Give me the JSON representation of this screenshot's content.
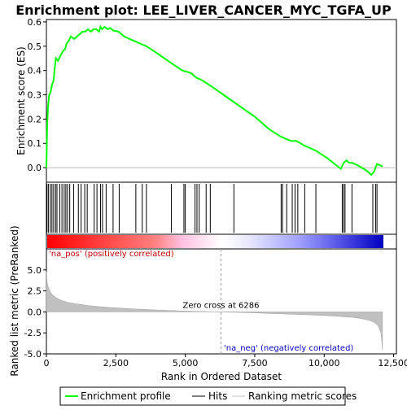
{
  "chart_data": {
    "type": "line",
    "title": "Enrichment plot: LEE_LIVER_CANCER_MYC_TGFA_UP",
    "top_panel": {
      "ylabel": "Enrichment score (ES)",
      "ylim": [
        -0.06,
        0.61
      ],
      "y_ticks": [
        0.0,
        0.1,
        0.2,
        0.3,
        0.4,
        0.5,
        0.6
      ],
      "y_tick_labels": [
        "0.0",
        "0.1",
        "0.2",
        "0.3",
        "0.4",
        "0.5",
        "0.6"
      ],
      "series": [
        {
          "name": "Enrichment profile",
          "color": "#00ff00",
          "x": [
            0,
            30,
            60,
            100,
            150,
            200,
            260,
            300,
            340,
            420,
            500,
            600,
            680,
            720,
            790,
            880,
            1000,
            1100,
            1200,
            1300,
            1400,
            1500,
            1600,
            1700,
            1800,
            1900,
            1950,
            2000,
            2100,
            2200,
            2300,
            2400,
            2600,
            2800,
            3000,
            3200,
            3400,
            3600,
            4000,
            4500,
            4900,
            5200,
            5400,
            5600,
            6000,
            6500,
            7000,
            7500,
            8000,
            8400,
            8600,
            8800,
            9000,
            9300,
            9700,
            10100,
            10600,
            10700,
            10800,
            10900,
            11000,
            11200,
            11500,
            11700,
            11800,
            11900,
            12000,
            12100
          ],
          "y": [
            0.0,
            0.18,
            0.25,
            0.3,
            0.31,
            0.34,
            0.36,
            0.41,
            0.45,
            0.44,
            0.46,
            0.48,
            0.49,
            0.51,
            0.52,
            0.54,
            0.53,
            0.54,
            0.55,
            0.56,
            0.56,
            0.57,
            0.56,
            0.57,
            0.57,
            0.56,
            0.58,
            0.57,
            0.58,
            0.57,
            0.575,
            0.565,
            0.56,
            0.54,
            0.53,
            0.52,
            0.51,
            0.5,
            0.47,
            0.43,
            0.4,
            0.39,
            0.37,
            0.36,
            0.33,
            0.29,
            0.25,
            0.21,
            0.16,
            0.13,
            0.12,
            0.11,
            0.11,
            0.09,
            0.07,
            0.04,
            -0.005,
            0.02,
            0.03,
            0.02,
            0.02,
            0.01,
            -0.01,
            -0.03,
            -0.015,
            0.015,
            0.01,
            0.005
          ]
        }
      ]
    },
    "hits_panel": {
      "legend_label": "Hits",
      "hit_positions": [
        20,
        70,
        140,
        200,
        260,
        330,
        380,
        480,
        560,
        640,
        700,
        760,
        840,
        980,
        1150,
        1250,
        1380,
        1470,
        1720,
        1820,
        1950,
        2020,
        2150,
        2400,
        2620,
        3220,
        3450,
        3600,
        4500,
        4950,
        5000,
        5350,
        5420,
        5500,
        5750,
        5900,
        6750,
        8450,
        8500,
        8650,
        8850,
        8950,
        9050,
        9300,
        9700,
        10650,
        10700,
        10750,
        11000,
        11750,
        11850,
        11900
      ]
    },
    "bottom_panel": {
      "ylabel": "Ranked list metric (PreRanked)",
      "xlabel": "Rank in Ordered Dataset",
      "ylim": [
        -5,
        7.5
      ],
      "y_ticks": [
        -5.0,
        -2.5,
        0.0,
        2.5,
        5.0
      ],
      "y_tick_labels": [
        "-5.0",
        "-2.5",
        "0.0",
        "2.5",
        "5.0"
      ],
      "x_ticks": [
        0,
        2500,
        5000,
        7500,
        10000,
        12500
      ],
      "x_tick_labels": [
        "0",
        "2,500",
        "5,000",
        "7,500",
        "10,000",
        "12,500"
      ],
      "xlim": [
        0,
        12600
      ],
      "zero_cross": 6286,
      "zero_cross_label": "Zero cross at 6286",
      "pos_label": "'na_pos' (positively correlated)",
      "neg_label": "'na_neg' (negatively correlated)",
      "metric_series": {
        "name": "Ranking metric scores",
        "x": [
          0,
          20,
          60,
          120,
          200,
          300,
          450,
          600,
          800,
          1000,
          1300,
          1600,
          2000,
          2500,
          3000,
          3500,
          4000,
          4500,
          5000,
          5500,
          6000,
          6286,
          6800,
          7500,
          8000,
          8500,
          9000,
          9500,
          10000,
          10500,
          11000,
          11300,
          11600,
          11800,
          11950,
          12050,
          12100
        ],
        "y": [
          4.8,
          3.6,
          3.0,
          2.5,
          2.1,
          1.8,
          1.5,
          1.3,
          1.1,
          1.0,
          0.85,
          0.72,
          0.6,
          0.48,
          0.38,
          0.3,
          0.22,
          0.16,
          0.1,
          0.06,
          0.02,
          0.0,
          -0.05,
          -0.12,
          -0.18,
          -0.24,
          -0.3,
          -0.36,
          -0.43,
          -0.52,
          -0.65,
          -0.78,
          -0.98,
          -1.25,
          -1.7,
          -2.6,
          -4.5
        ]
      }
    },
    "legend": [
      "Enrichment profile",
      "Hits",
      "Ranking metric scores"
    ],
    "legend_colors": {
      "enrichment": "#00ff00",
      "hits": "#000000",
      "metric": "#c0c0c0"
    },
    "colors": {
      "pos_bar": "#ff0000",
      "neg_bar": "#0000ff",
      "pos_text": "#cc0000",
      "neg_text": "#0000cc"
    }
  }
}
